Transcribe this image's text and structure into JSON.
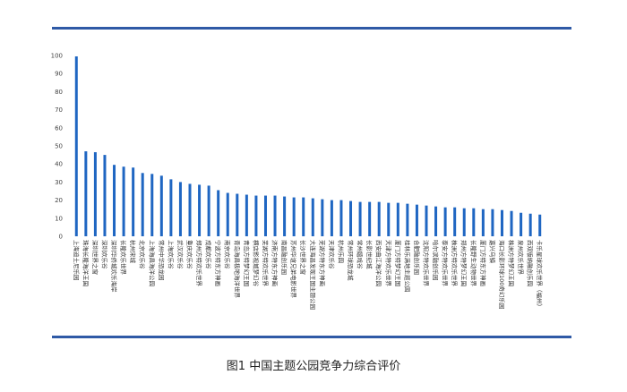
{
  "colors": {
    "bar": "#1f66c2",
    "rule": "#2f5aa6"
  },
  "caption": "图1 中国主题公园竞争力综合评价",
  "chart_data": {
    "type": "bar",
    "title": "",
    "xlabel": "",
    "ylabel": "",
    "ylim": [
      0,
      100
    ],
    "yticks": [
      0,
      10,
      20,
      30,
      40,
      50,
      60,
      70,
      80,
      90,
      100
    ],
    "grid": false,
    "categories": [
      "上海迪士尼乐园",
      "珠海长隆海洋王国",
      "深圳世界之窗",
      "深圳欢乐谷",
      "深圳华侨城欢乐海岸",
      "长隆欢乐世界",
      "杭州宋城",
      "北京欢乐谷",
      "上海海昌海洋公园",
      "常州中华恐龙园",
      "上海欢乐谷",
      "武汉欢乐谷",
      "重庆欢乐谷",
      "郑州方特欢乐世界",
      "成都欢乐谷",
      "宁波方特东方神画",
      "南京欢乐谷",
      "青岛海昌极地海洋世界",
      "青岛方特梦幻王国",
      "横店影视城梦幻谷",
      "芜湖方特欢乐世界",
      "济南方特东方神画",
      "南昌融创乐园",
      "苏州华谊兄弟电影世界",
      "长沙世界之窗",
      "大连海昌发现王国主题公园",
      "芜湖方特东方神画",
      "天津欢乐谷",
      "杭州乐园",
      "常州环球恐龙城",
      "常州嬉戏谷",
      "长影世纪城",
      "西安曲江海洋公园",
      "天津方特欢乐世界",
      "厦门方特梦幻王国",
      "桂林乐满地主题公园",
      "合肥融创乐园",
      "沈阳方特欢乐世界",
      "哈尔滨融创乐园",
      "泰安方特欢乐世界",
      "株洲方特欢乐世界",
      "郑州方特梦幻王国",
      "长隆野生动物世界",
      "厦门方特东方神画",
      "嘉兴乌镇",
      "海口长影环球100奇幻乐园",
      "株洲方特梦幻王国",
      "泉州欢乐世界",
      "西双版纳融创乐园",
      "卡乐星球欢乐世界（福州）"
    ],
    "values": [
      99.5,
      47,
      46.5,
      45,
      39.5,
      38.5,
      38,
      35,
      34.5,
      33.5,
      31.5,
      30,
      29,
      28.5,
      28,
      25.5,
      24,
      23.5,
      23,
      22.5,
      22.5,
      22.5,
      22,
      21.5,
      21.5,
      21,
      20.5,
      20,
      20,
      19.5,
      19,
      19,
      19,
      18.5,
      18.5,
      18,
      17.5,
      17,
      16.5,
      16,
      16,
      15.5,
      15.5,
      15,
      15,
      14.5,
      14,
      13,
      12.5,
      12
    ]
  }
}
